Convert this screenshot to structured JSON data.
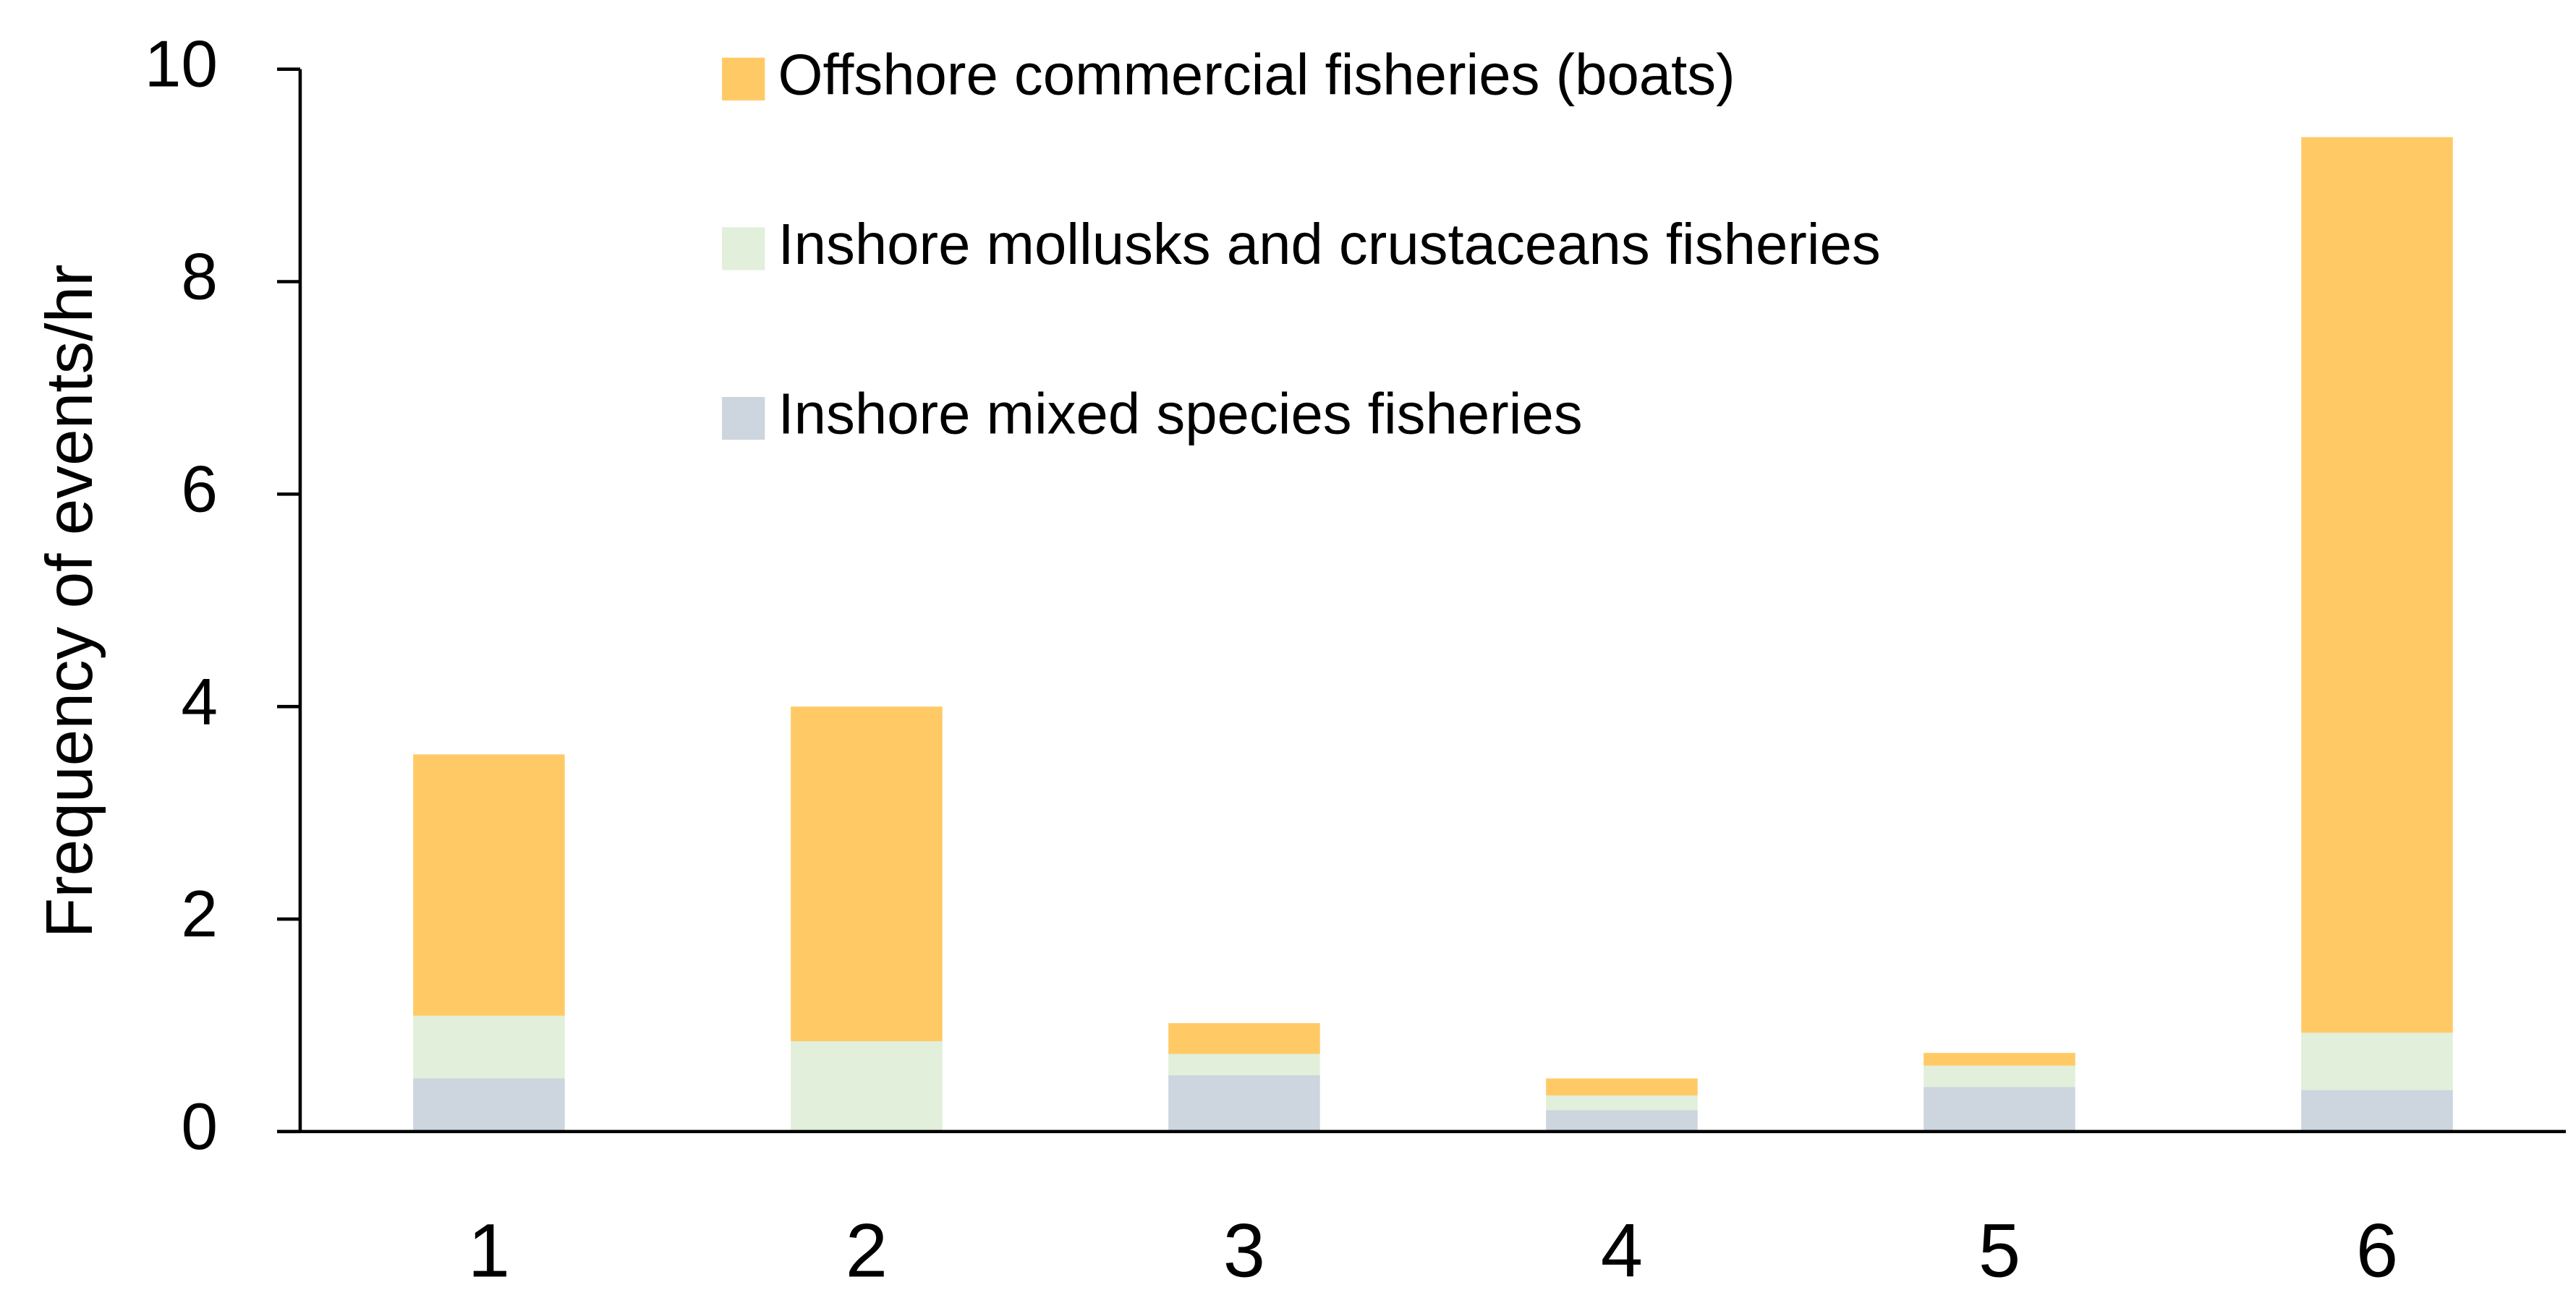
{
  "chart_data": {
    "type": "stacked_bar",
    "y_label": "Frequency of events/hr",
    "categories": [
      "1",
      "2",
      "3",
      "4",
      "5",
      "6"
    ],
    "series": [
      {
        "name": "Inshore mixed species fisheries",
        "color": "#cdd5df",
        "values": [
          0.5,
          0,
          0.53,
          0.2,
          0.42,
          0.39
        ]
      },
      {
        "name": "Inshore mollusks and crustaceans fisheries",
        "color": "#e2efda",
        "values": [
          0.59,
          0.85,
          0.2,
          0.14,
          0.2,
          0.54
        ]
      },
      {
        "name": "Offshore commercial fisheries (boats)",
        "color": "#ffca66",
        "values": [
          2.46,
          3.15,
          0.29,
          0.16,
          0.12,
          8.43
        ]
      }
    ],
    "ylim": [
      0,
      10
    ],
    "yticks": [
      0,
      2,
      4,
      6,
      8,
      10
    ],
    "grid": false,
    "legend": "top"
  }
}
